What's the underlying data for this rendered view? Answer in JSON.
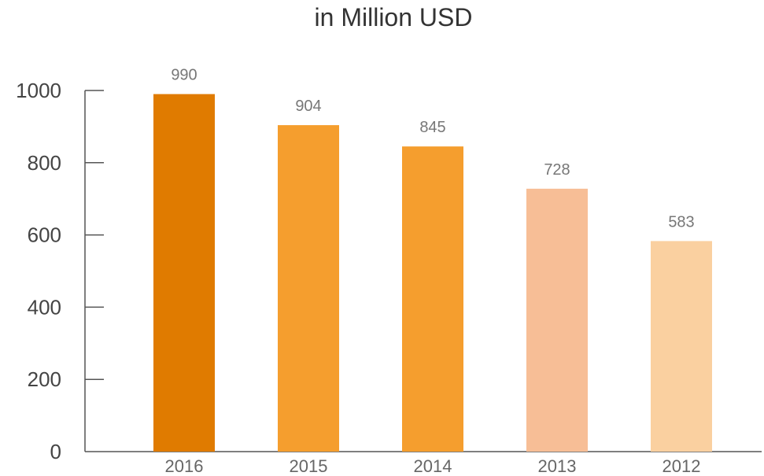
{
  "chart_data": {
    "type": "bar",
    "title": "in Million USD",
    "xlabel": "",
    "ylabel": "",
    "categories": [
      "2016",
      "2015",
      "2014",
      "2013",
      "2012"
    ],
    "values": [
      990,
      904,
      845,
      728,
      583
    ],
    "colors": [
      "#E07B00",
      "#F59E2E",
      "#F59E2E",
      "#F7BE96",
      "#FAD0A0"
    ],
    "ylim": [
      0,
      1000
    ],
    "yticks": [
      0,
      200,
      400,
      600,
      800,
      1000
    ],
    "grid": false,
    "legend": "none"
  }
}
